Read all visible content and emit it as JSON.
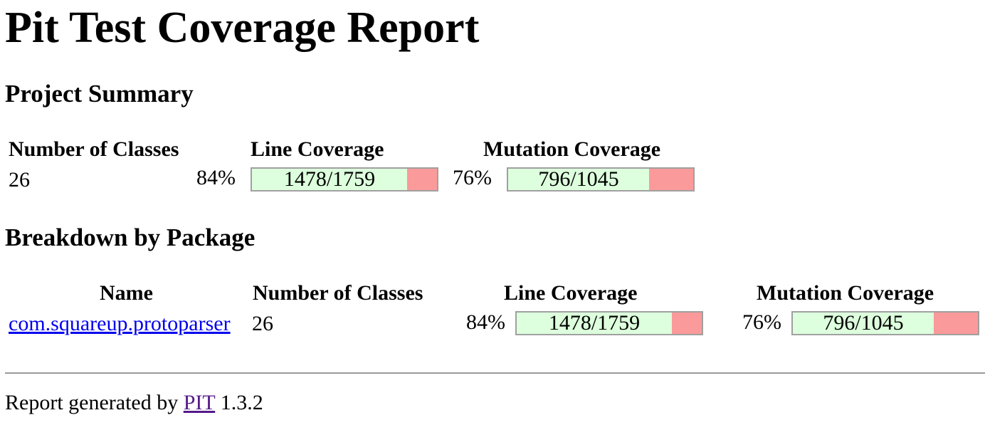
{
  "page_title": "Pit Test Coverage Report",
  "summary": {
    "heading": "Project Summary",
    "headers": {
      "classes": "Number of Classes",
      "line": "Line Coverage",
      "mutation": "Mutation Coverage"
    },
    "classes": "26",
    "line": {
      "percent": "84%",
      "ratio": "1478/1759",
      "covered": 1478,
      "total": 1759
    },
    "mutation": {
      "percent": "76%",
      "ratio": "796/1045",
      "covered": 796,
      "total": 1045
    }
  },
  "breakdown": {
    "heading": "Breakdown by Package",
    "headers": {
      "name": "Name",
      "classes": "Number of Classes",
      "line": "Line Coverage",
      "mutation": "Mutation Coverage"
    },
    "rows": [
      {
        "name": "com.squareup.protoparser",
        "classes": "26",
        "line": {
          "percent": "84%",
          "ratio": "1478/1759",
          "covered": 1478,
          "total": 1759
        },
        "mutation": {
          "percent": "76%",
          "ratio": "796/1045",
          "covered": 796,
          "total": 1045
        }
      }
    ]
  },
  "footer": {
    "prefix": "Report generated by ",
    "link": "PIT",
    "version": " 1.3.2"
  },
  "colors": {
    "covered": "#ddffdd",
    "uncovered": "#fa9a9a",
    "border": "#a0a0a0",
    "link": "#0000ee",
    "visited_link": "#551a8b"
  }
}
